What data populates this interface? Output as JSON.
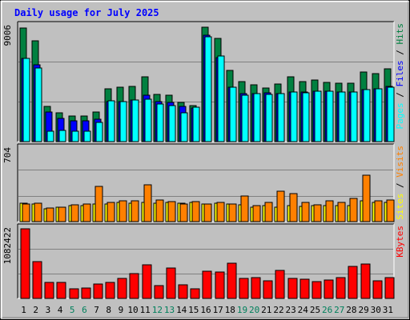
{
  "chart_data": [
    {
      "type": "bar",
      "title": "Daily usage for July 2025",
      "categories": [
        "1",
        "2",
        "3",
        "4",
        "5",
        "6",
        "7",
        "8",
        "9",
        "10",
        "11",
        "12",
        "13",
        "14",
        "15",
        "16",
        "17",
        "18",
        "19",
        "20",
        "21",
        "22",
        "23",
        "24",
        "25",
        "26",
        "27",
        "28",
        "29",
        "30",
        "31"
      ],
      "weekend_days": [
        "5",
        "6",
        "12",
        "13",
        "19",
        "20",
        "26",
        "27"
      ],
      "ymax_label": "9006",
      "ylim": [
        0,
        9006
      ],
      "ylabel_parts": [
        "Pages",
        "Files",
        "Hits"
      ],
      "series": [
        {
          "name": "Hits",
          "color": "#008040",
          "values": [
            8750,
            7800,
            2700,
            2200,
            1950,
            2000,
            2300,
            4100,
            4200,
            4250,
            5000,
            3650,
            3550,
            3000,
            2800,
            8850,
            7950,
            5500,
            4600,
            4350,
            4150,
            4450,
            5000,
            4650,
            4750,
            4550,
            4500,
            4500,
            5350,
            5250,
            5600
          ]
        },
        {
          "name": "Files",
          "color": "#0000ff",
          "values": [
            6400,
            5900,
            2300,
            1800,
            1600,
            1600,
            1700,
            3100,
            3100,
            3200,
            3550,
            3100,
            3000,
            2700,
            2600,
            8200,
            6500,
            4200,
            3700,
            3700,
            3750,
            3700,
            3800,
            3800,
            3900,
            3900,
            3850,
            3850,
            4000,
            4050,
            4250
          ]
        },
        {
          "name": "Pages",
          "color": "#00ffff",
          "values": [
            6400,
            5700,
            800,
            850,
            800,
            800,
            1500,
            3150,
            3100,
            3200,
            3300,
            2900,
            2800,
            2200,
            2650,
            8100,
            6600,
            4200,
            3600,
            3700,
            3650,
            3700,
            3800,
            3750,
            3900,
            3900,
            3800,
            3800,
            4000,
            4100,
            4200
          ]
        }
      ]
    },
    {
      "type": "bar",
      "ymax_label": "704",
      "ylim": [
        0,
        704
      ],
      "ylabel_parts": [
        "Sites",
        "Visits"
      ],
      "series": [
        {
          "name": "Visits",
          "color": "#ff8000",
          "values": [
            170,
            175,
            125,
            140,
            160,
            165,
            330,
            180,
            200,
            200,
            350,
            205,
            190,
            170,
            190,
            170,
            185,
            165,
            240,
            155,
            180,
            290,
            265,
            180,
            160,
            200,
            180,
            220,
            440,
            195,
            205
          ]
        },
        {
          "name": "Sites",
          "color": "#ffff00",
          "values": [
            175,
            170,
            120,
            140,
            155,
            150,
            170,
            165,
            180,
            175,
            180,
            175,
            180,
            175,
            185,
            165,
            175,
            170,
            160,
            140,
            155,
            140,
            150,
            145,
            150,
            150,
            150,
            150,
            195,
            185,
            180
          ]
        }
      ]
    },
    {
      "type": "bar",
      "ymax_label": "1082422",
      "ylim": [
        0,
        1082422
      ],
      "ylabel_parts": [
        "KBytes"
      ],
      "series": [
        {
          "name": "KBytes",
          "color": "#ff0000",
          "values": [
            1060000,
            560000,
            240000,
            240000,
            140000,
            160000,
            220000,
            240000,
            300000,
            380000,
            510000,
            200000,
            460000,
            210000,
            140000,
            410000,
            400000,
            530000,
            310000,
            320000,
            270000,
            420000,
            310000,
            290000,
            260000,
            280000,
            320000,
            490000,
            520000,
            270000,
            320000
          ]
        }
      ]
    }
  ]
}
